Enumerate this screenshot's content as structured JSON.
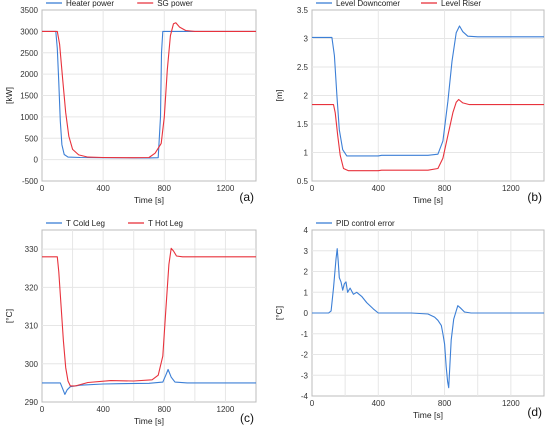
{
  "chart_data": [
    {
      "type": "line",
      "panel_label": "(a)",
      "xlabel": "Time [s]",
      "ylabel": "[kW]",
      "xlim": [
        0,
        1400
      ],
      "ylim": [
        -500,
        3500
      ],
      "xticks": [
        0,
        400,
        800,
        1200
      ],
      "yticks": [
        -500,
        0,
        500,
        1000,
        1500,
        2000,
        2500,
        3000,
        3500
      ],
      "grid": true,
      "legend": "top",
      "series": [
        {
          "name": "Heater power",
          "color": "#3c7fd6",
          "points": [
            [
              0,
              3000
            ],
            [
              90,
              3000
            ],
            [
              100,
              2600
            ],
            [
              110,
              1800
            ],
            [
              120,
              900
            ],
            [
              130,
              350
            ],
            [
              145,
              120
            ],
            [
              170,
              60
            ],
            [
              250,
              50
            ],
            [
              400,
              45
            ],
            [
              600,
              40
            ],
            [
              700,
              40
            ],
            [
              760,
              45
            ],
            [
              775,
              1000
            ],
            [
              782,
              2500
            ],
            [
              790,
              3000
            ],
            [
              1400,
              3000
            ]
          ]
        },
        {
          "name": "SG power",
          "color": "#e8323c",
          "points": [
            [
              0,
              3000
            ],
            [
              100,
              3000
            ],
            [
              115,
              2700
            ],
            [
              135,
              1900
            ],
            [
              155,
              1100
            ],
            [
              175,
              550
            ],
            [
              200,
              240
            ],
            [
              240,
              110
            ],
            [
              300,
              60
            ],
            [
              400,
              50
            ],
            [
              600,
              45
            ],
            [
              700,
              50
            ],
            [
              740,
              150
            ],
            [
              780,
              380
            ],
            [
              800,
              1000
            ],
            [
              820,
              2100
            ],
            [
              840,
              2900
            ],
            [
              860,
              3180
            ],
            [
              875,
              3200
            ],
            [
              900,
              3100
            ],
            [
              940,
              3020
            ],
            [
              1000,
              3000
            ],
            [
              1400,
              3000
            ]
          ]
        }
      ]
    },
    {
      "type": "line",
      "panel_label": "(b)",
      "xlabel": "Time [s]",
      "ylabel": "[m]",
      "xlim": [
        0,
        1400
      ],
      "ylim": [
        0.5,
        3.5
      ],
      "xticks": [
        0,
        400,
        800,
        1200
      ],
      "yticks": [
        0.5,
        1.0,
        1.5,
        2.0,
        2.5,
        3.0,
        3.5
      ],
      "grid": true,
      "legend": "top",
      "series": [
        {
          "name": "Level Downcomer",
          "color": "#3c7fd6",
          "points": [
            [
              0,
              3.02
            ],
            [
              120,
              3.02
            ],
            [
              135,
              2.7
            ],
            [
              150,
              2.0
            ],
            [
              165,
              1.4
            ],
            [
              185,
              1.05
            ],
            [
              210,
              0.94
            ],
            [
              400,
              0.94
            ],
            [
              420,
              0.95
            ],
            [
              700,
              0.95
            ],
            [
              760,
              0.97
            ],
            [
              790,
              1.2
            ],
            [
              820,
              1.9
            ],
            [
              845,
              2.6
            ],
            [
              870,
              3.1
            ],
            [
              890,
              3.22
            ],
            [
              910,
              3.12
            ],
            [
              940,
              3.04
            ],
            [
              1000,
              3.03
            ],
            [
              1400,
              3.03
            ]
          ]
        },
        {
          "name": "Level Riser",
          "color": "#e8323c",
          "points": [
            [
              0,
              1.84
            ],
            [
              130,
              1.84
            ],
            [
              140,
              1.7
            ],
            [
              155,
              1.3
            ],
            [
              170,
              0.95
            ],
            [
              190,
              0.72
            ],
            [
              220,
              0.68
            ],
            [
              400,
              0.68
            ],
            [
              420,
              0.69
            ],
            [
              700,
              0.69
            ],
            [
              760,
              0.72
            ],
            [
              790,
              0.9
            ],
            [
              820,
              1.3
            ],
            [
              850,
              1.7
            ],
            [
              870,
              1.88
            ],
            [
              885,
              1.93
            ],
            [
              910,
              1.87
            ],
            [
              950,
              1.84
            ],
            [
              1400,
              1.84
            ]
          ]
        }
      ]
    },
    {
      "type": "line",
      "panel_label": "(c)",
      "xlabel": "Time [s]",
      "ylabel": "[°C]",
      "xlim": [
        0,
        1400
      ],
      "ylim": [
        290,
        335
      ],
      "xticks": [
        0,
        200,
        400,
        600,
        800,
        1000,
        1200
      ],
      "xticklabels": [
        "0",
        "",
        "400",
        "",
        "800",
        "",
        "1200"
      ],
      "yticks": [
        290,
        300,
        310,
        320,
        330
      ],
      "grid": true,
      "legend": "top",
      "series": [
        {
          "name": "T Cold Leg",
          "color": "#3c7fd6",
          "points": [
            [
              0,
              295
            ],
            [
              120,
              295
            ],
            [
              135,
              293.5
            ],
            [
              150,
              292
            ],
            [
              165,
              293.2
            ],
            [
              185,
              294
            ],
            [
              250,
              294.4
            ],
            [
              400,
              294.7
            ],
            [
              500,
              294.8
            ],
            [
              700,
              294.9
            ],
            [
              790,
              295.2
            ],
            [
              810,
              297
            ],
            [
              825,
              298.5
            ],
            [
              845,
              296.5
            ],
            [
              870,
              295.2
            ],
            [
              950,
              295
            ],
            [
              1400,
              295
            ]
          ]
        },
        {
          "name": "T Hot Leg",
          "color": "#e8323c",
          "points": [
            [
              0,
              328
            ],
            [
              100,
              328
            ],
            [
              110,
              324
            ],
            [
              125,
              315
            ],
            [
              140,
              306
            ],
            [
              155,
              299
            ],
            [
              170,
              295.5
            ],
            [
              185,
              294.2
            ],
            [
              220,
              294.2
            ],
            [
              300,
              295.1
            ],
            [
              450,
              295.6
            ],
            [
              600,
              295.5
            ],
            [
              720,
              295.8
            ],
            [
              760,
              297
            ],
            [
              790,
              302
            ],
            [
              810,
              314
            ],
            [
              830,
              326
            ],
            [
              845,
              330.2
            ],
            [
              860,
              329.5
            ],
            [
              880,
              328.2
            ],
            [
              920,
              328
            ],
            [
              1400,
              328
            ]
          ]
        }
      ]
    },
    {
      "type": "line",
      "panel_label": "(d)",
      "xlabel": "Time [s]",
      "ylabel": "[°C]",
      "xlim": [
        0,
        1400
      ],
      "ylim": [
        -4,
        4
      ],
      "xticks": [
        0,
        200,
        400,
        600,
        800,
        1000,
        1200
      ],
      "xticklabels": [
        "0",
        "",
        "400",
        "",
        "800",
        "",
        "1200"
      ],
      "yticks": [
        -4,
        -3,
        -2,
        -1,
        0,
        1,
        2,
        3,
        4
      ],
      "grid": true,
      "legend": "top",
      "series": [
        {
          "name": "PID control error",
          "color": "#3c7fd6",
          "points": [
            [
              0,
              0
            ],
            [
              100,
              0
            ],
            [
              115,
              0.1
            ],
            [
              130,
              1.2
            ],
            [
              145,
              2.6
            ],
            [
              152,
              3.1
            ],
            [
              158,
              2.5
            ],
            [
              165,
              1.7
            ],
            [
              175,
              1.5
            ],
            [
              185,
              1.1
            ],
            [
              195,
              1.4
            ],
            [
              205,
              1.5
            ],
            [
              215,
              1.0
            ],
            [
              230,
              1.2
            ],
            [
              250,
              0.9
            ],
            [
              270,
              1.0
            ],
            [
              300,
              0.8
            ],
            [
              330,
              0.5
            ],
            [
              370,
              0.2
            ],
            [
              400,
              0.0
            ],
            [
              600,
              0.0
            ],
            [
              700,
              -0.05
            ],
            [
              740,
              -0.2
            ],
            [
              760,
              -0.35
            ],
            [
              780,
              -0.6
            ],
            [
              790,
              -1.0
            ],
            [
              800,
              -1.5
            ],
            [
              810,
              -2.6
            ],
            [
              818,
              -3.3
            ],
            [
              825,
              -3.6
            ],
            [
              832,
              -2.5
            ],
            [
              840,
              -1.3
            ],
            [
              855,
              -0.3
            ],
            [
              870,
              0.1
            ],
            [
              880,
              0.35
            ],
            [
              895,
              0.25
            ],
            [
              920,
              0.05
            ],
            [
              960,
              0.0
            ],
            [
              1400,
              0.0
            ]
          ]
        }
      ]
    }
  ]
}
